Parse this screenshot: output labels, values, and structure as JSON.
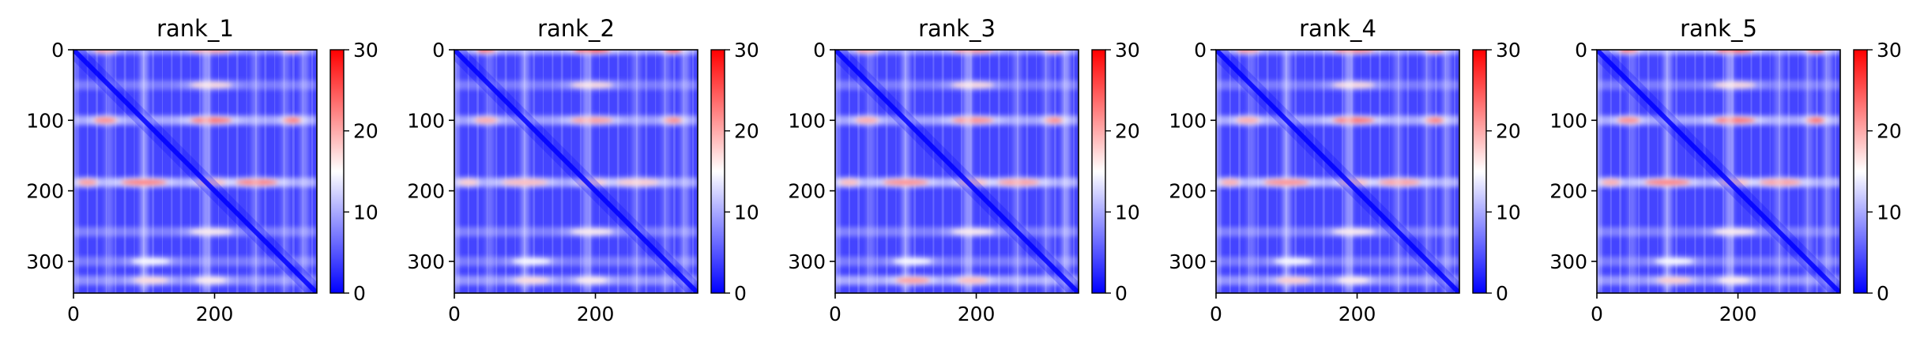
{
  "figure": {
    "panels": [
      "rank_1",
      "rank_2",
      "rank_3",
      "rank_4",
      "rank_5"
    ]
  },
  "colors": {
    "colormap": "bwr",
    "low": "#0000ff",
    "mid": "#ffffff",
    "high": "#ff0000",
    "axes": "#000000"
  },
  "chart_data": [
    {
      "type": "heatmap",
      "title": "rank_1",
      "xlim": [
        0,
        345
      ],
      "ylim": [
        345,
        0
      ],
      "xticks": [
        0,
        200
      ],
      "yticks": [
        0,
        100,
        200,
        300
      ],
      "colorbar": {
        "min": 0,
        "max": 30,
        "ticks": [
          0,
          10,
          20,
          30
        ]
      },
      "hot_bands": [
        {
          "row": 0,
          "intensity": 0.75,
          "peaks": [
            {
              "x": 45,
              "w": 30,
              "v": 21
            },
            {
              "x": 195,
              "w": 55,
              "v": 21
            },
            {
              "x": 310,
              "w": 25,
              "v": 20
            }
          ]
        },
        {
          "row": 50,
          "intensity": 0.55,
          "peaks": [
            {
              "x": 195,
              "w": 55,
              "v": 17
            }
          ]
        },
        {
          "row": 100,
          "intensity": 1.0,
          "peaks": [
            {
              "x": 45,
              "w": 30,
              "v": 22
            },
            {
              "x": 195,
              "w": 55,
              "v": 24
            },
            {
              "x": 310,
              "w": 25,
              "v": 23
            }
          ]
        },
        {
          "row": 188,
          "intensity": 1.0,
          "peaks": [
            {
              "x": 20,
              "w": 25,
              "v": 21
            },
            {
              "x": 100,
              "w": 60,
              "v": 23
            },
            {
              "x": 195,
              "w": 40,
              "v": 19
            },
            {
              "x": 260,
              "w": 55,
              "v": 23
            }
          ]
        },
        {
          "row": 258,
          "intensity": 0.6,
          "peaks": [
            {
              "x": 195,
              "w": 55,
              "v": 16
            }
          ]
        },
        {
          "row": 300,
          "intensity": 0.55,
          "peaks": [
            {
              "x": 110,
              "w": 50,
              "v": 15
            }
          ]
        },
        {
          "row": 327,
          "intensity": 0.75,
          "peaks": [
            {
              "x": 110,
              "w": 45,
              "v": 17
            },
            {
              "x": 195,
              "w": 40,
              "v": 16
            }
          ]
        }
      ]
    },
    {
      "type": "heatmap",
      "title": "rank_2",
      "xlim": [
        0,
        345
      ],
      "ylim": [
        345,
        0
      ],
      "xticks": [
        0,
        200
      ],
      "yticks": [
        0,
        100,
        200,
        300
      ],
      "colorbar": {
        "min": 0,
        "max": 30,
        "ticks": [
          0,
          10,
          20,
          30
        ]
      },
      "hot_bands": [
        {
          "row": 0,
          "intensity": 1.0,
          "peaks": [
            {
              "x": 45,
              "w": 25,
              "v": 25
            },
            {
              "x": 195,
              "w": 50,
              "v": 27
            },
            {
              "x": 310,
              "w": 25,
              "v": 26
            }
          ]
        },
        {
          "row": 50,
          "intensity": 0.55,
          "peaks": [
            {
              "x": 195,
              "w": 55,
              "v": 17
            }
          ]
        },
        {
          "row": 100,
          "intensity": 0.9,
          "peaks": [
            {
              "x": 45,
              "w": 30,
              "v": 20
            },
            {
              "x": 195,
              "w": 55,
              "v": 21
            },
            {
              "x": 310,
              "w": 25,
              "v": 22
            }
          ]
        },
        {
          "row": 188,
          "intensity": 0.9,
          "peaks": [
            {
              "x": 20,
              "w": 25,
              "v": 18
            },
            {
              "x": 100,
              "w": 60,
              "v": 19
            },
            {
              "x": 195,
              "w": 40,
              "v": 18
            },
            {
              "x": 260,
              "w": 55,
              "v": 18
            }
          ]
        },
        {
          "row": 258,
          "intensity": 0.6,
          "peaks": [
            {
              "x": 195,
              "w": 55,
              "v": 16
            }
          ]
        },
        {
          "row": 300,
          "intensity": 0.55,
          "peaks": [
            {
              "x": 110,
              "w": 50,
              "v": 15
            }
          ]
        },
        {
          "row": 327,
          "intensity": 0.8,
          "peaks": [
            {
              "x": 110,
              "w": 45,
              "v": 17
            },
            {
              "x": 195,
              "w": 40,
              "v": 16
            }
          ]
        }
      ]
    },
    {
      "type": "heatmap",
      "title": "rank_3",
      "xlim": [
        0,
        345
      ],
      "ylim": [
        345,
        0
      ],
      "xticks": [
        0,
        200
      ],
      "yticks": [
        0,
        100,
        200,
        300
      ],
      "colorbar": {
        "min": 0,
        "max": 30,
        "ticks": [
          0,
          10,
          20,
          30
        ]
      },
      "hot_bands": [
        {
          "row": 0,
          "intensity": 0.85,
          "peaks": [
            {
              "x": 45,
              "w": 30,
              "v": 21
            },
            {
              "x": 195,
              "w": 55,
              "v": 22
            },
            {
              "x": 310,
              "w": 25,
              "v": 21
            }
          ]
        },
        {
          "row": 50,
          "intensity": 0.55,
          "peaks": [
            {
              "x": 195,
              "w": 55,
              "v": 17
            }
          ]
        },
        {
          "row": 100,
          "intensity": 0.95,
          "peaks": [
            {
              "x": 45,
              "w": 30,
              "v": 20
            },
            {
              "x": 195,
              "w": 55,
              "v": 22
            },
            {
              "x": 310,
              "w": 25,
              "v": 22
            }
          ]
        },
        {
          "row": 188,
          "intensity": 1.0,
          "peaks": [
            {
              "x": 20,
              "w": 25,
              "v": 19
            },
            {
              "x": 100,
              "w": 60,
              "v": 22
            },
            {
              "x": 195,
              "w": 40,
              "v": 19
            },
            {
              "x": 260,
              "w": 55,
              "v": 21
            }
          ]
        },
        {
          "row": 258,
          "intensity": 0.6,
          "peaks": [
            {
              "x": 195,
              "w": 55,
              "v": 16
            }
          ]
        },
        {
          "row": 300,
          "intensity": 0.55,
          "peaks": [
            {
              "x": 110,
              "w": 50,
              "v": 15
            }
          ]
        },
        {
          "row": 327,
          "intensity": 1.0,
          "peaks": [
            {
              "x": 110,
              "w": 45,
              "v": 21
            },
            {
              "x": 195,
              "w": 40,
              "v": 19
            }
          ]
        }
      ]
    },
    {
      "type": "heatmap",
      "title": "rank_4",
      "xlim": [
        0,
        345
      ],
      "ylim": [
        345,
        0
      ],
      "xticks": [
        0,
        200
      ],
      "yticks": [
        0,
        100,
        200,
        300
      ],
      "colorbar": {
        "min": 0,
        "max": 30,
        "ticks": [
          0,
          10,
          20,
          30
        ]
      },
      "hot_bands": [
        {
          "row": 0,
          "intensity": 0.9,
          "peaks": [
            {
              "x": 45,
              "w": 30,
              "v": 22
            },
            {
              "x": 195,
              "w": 55,
              "v": 23
            },
            {
              "x": 310,
              "w": 25,
              "v": 22
            }
          ]
        },
        {
          "row": 50,
          "intensity": 0.55,
          "peaks": [
            {
              "x": 195,
              "w": 55,
              "v": 17
            }
          ]
        },
        {
          "row": 100,
          "intensity": 1.0,
          "peaks": [
            {
              "x": 45,
              "w": 30,
              "v": 20
            },
            {
              "x": 195,
              "w": 55,
              "v": 24
            },
            {
              "x": 310,
              "w": 25,
              "v": 23
            }
          ]
        },
        {
          "row": 188,
          "intensity": 1.0,
          "peaks": [
            {
              "x": 20,
              "w": 25,
              "v": 20
            },
            {
              "x": 100,
              "w": 60,
              "v": 22
            },
            {
              "x": 195,
              "w": 40,
              "v": 19
            },
            {
              "x": 260,
              "w": 55,
              "v": 21
            }
          ]
        },
        {
          "row": 258,
          "intensity": 0.6,
          "peaks": [
            {
              "x": 195,
              "w": 55,
              "v": 16
            }
          ]
        },
        {
          "row": 300,
          "intensity": 0.55,
          "peaks": [
            {
              "x": 110,
              "w": 50,
              "v": 15
            }
          ]
        },
        {
          "row": 327,
          "intensity": 0.8,
          "peaks": [
            {
              "x": 110,
              "w": 45,
              "v": 18
            },
            {
              "x": 195,
              "w": 40,
              "v": 16
            }
          ]
        }
      ]
    },
    {
      "type": "heatmap",
      "title": "rank_5",
      "xlim": [
        0,
        345
      ],
      "ylim": [
        345,
        0
      ],
      "xticks": [
        0,
        200
      ],
      "yticks": [
        0,
        100,
        200,
        300
      ],
      "colorbar": {
        "min": 0,
        "max": 30,
        "ticks": [
          0,
          10,
          20,
          30
        ]
      },
      "hot_bands": [
        {
          "row": 0,
          "intensity": 1.0,
          "peaks": [
            {
              "x": 45,
              "w": 25,
              "v": 24
            },
            {
              "x": 195,
              "w": 50,
              "v": 26
            },
            {
              "x": 310,
              "w": 25,
              "v": 25
            }
          ]
        },
        {
          "row": 50,
          "intensity": 0.55,
          "peaks": [
            {
              "x": 195,
              "w": 55,
              "v": 17
            }
          ]
        },
        {
          "row": 100,
          "intensity": 1.0,
          "peaks": [
            {
              "x": 45,
              "w": 30,
              "v": 22
            },
            {
              "x": 195,
              "w": 55,
              "v": 24
            },
            {
              "x": 310,
              "w": 25,
              "v": 24
            }
          ]
        },
        {
          "row": 188,
          "intensity": 1.0,
          "peaks": [
            {
              "x": 20,
              "w": 25,
              "v": 20
            },
            {
              "x": 100,
              "w": 60,
              "v": 23
            },
            {
              "x": 195,
              "w": 40,
              "v": 19
            },
            {
              "x": 260,
              "w": 55,
              "v": 21
            }
          ]
        },
        {
          "row": 258,
          "intensity": 0.6,
          "peaks": [
            {
              "x": 195,
              "w": 55,
              "v": 16
            }
          ]
        },
        {
          "row": 300,
          "intensity": 0.55,
          "peaks": [
            {
              "x": 110,
              "w": 50,
              "v": 15
            }
          ]
        },
        {
          "row": 327,
          "intensity": 0.8,
          "peaks": [
            {
              "x": 110,
              "w": 45,
              "v": 18
            },
            {
              "x": 195,
              "w": 40,
              "v": 16
            }
          ]
        }
      ]
    }
  ]
}
